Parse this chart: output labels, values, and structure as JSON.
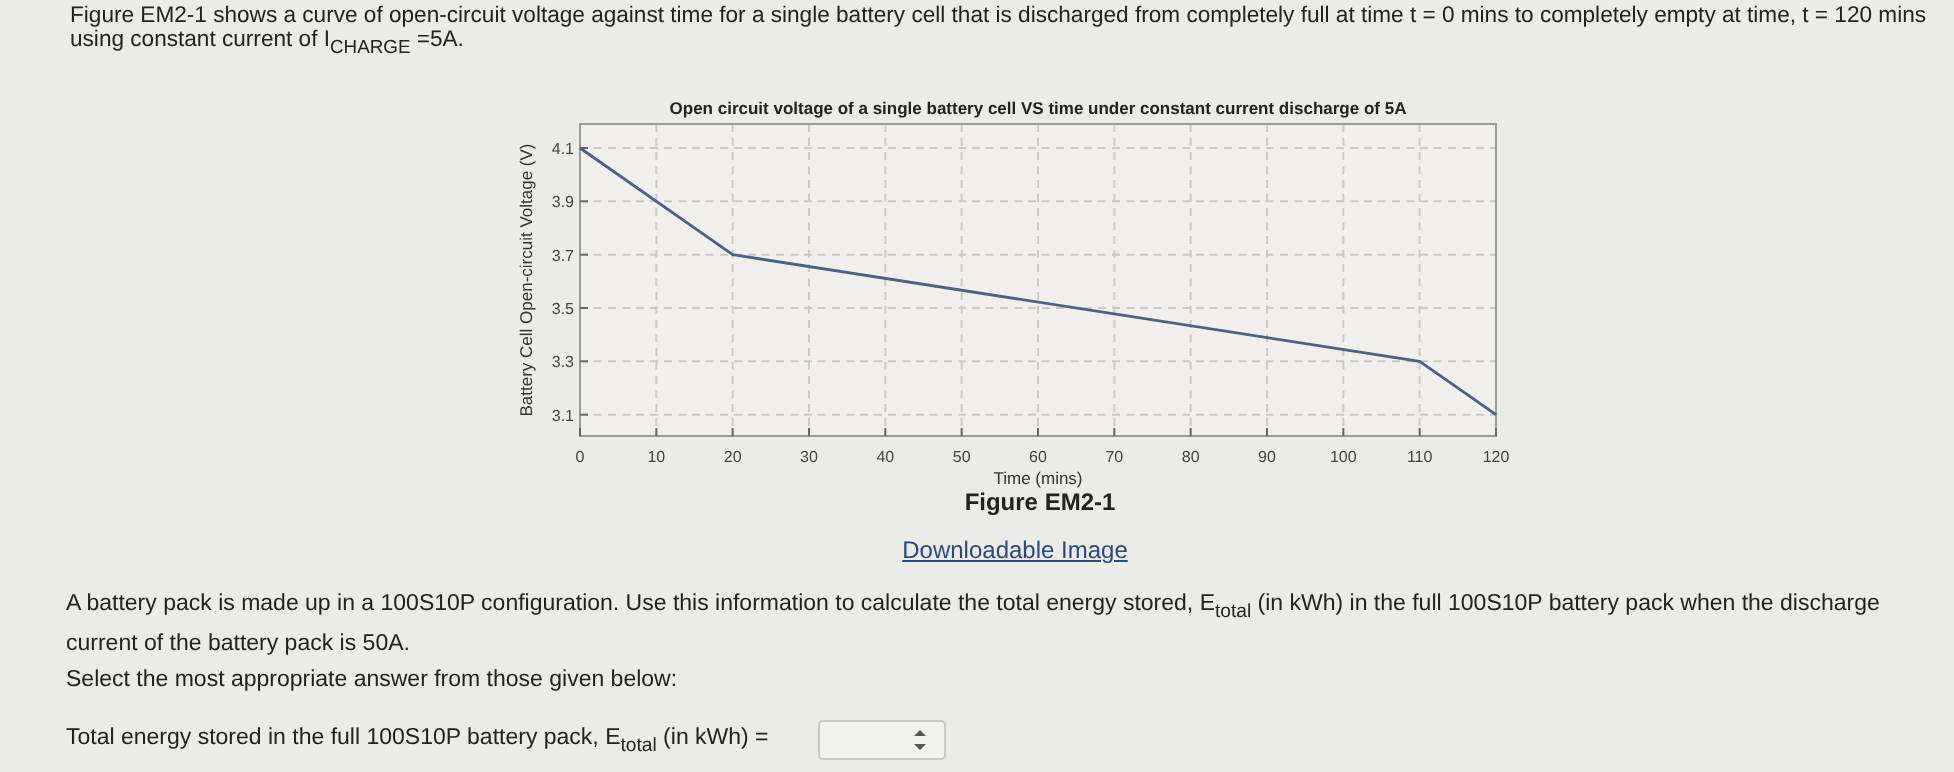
{
  "chart_data": {
    "type": "line",
    "title": "Open circuit voltage of a single battery cell VS time under constant current discharge of 5A",
    "xlabel": "Time (mins)",
    "ylabel": "Battery Cell Open-circuit Voltage (V)",
    "x": [
      0,
      20,
      110,
      120
    ],
    "series": [
      {
        "color": "#4f5f80",
        "values": [
          4.1,
          3.7,
          3.3,
          3.1
        ]
      }
    ],
    "xlim": [
      0,
      120
    ],
    "xticks": [
      0,
      10,
      20,
      30,
      40,
      50,
      60,
      70,
      80,
      90,
      100,
      110,
      120
    ],
    "ylim": [
      3.02,
      4.19
    ],
    "yticks": [
      3.1,
      3.3,
      3.5,
      3.7,
      3.9,
      4.1
    ],
    "grid": true,
    "line_style": "solid",
    "marker": "none",
    "annotations": [
      "Figure EM2-1 shows a curve of open-circuit voltage against time for a single battery cell that is discharged from completely full at time t = 0 mins to completely empty at time, t = 120 mins using constant current of I$_{CHARGE}$ =5A.",
      "Figure EM2-1",
      "Downloadable Image",
      "A battery pack is made up in a 100S10P configuration.  Use this information to calculate the total energy stored, E$_{total}$ (in kWh) in the full 100S10P battery pack when the discharge current of the battery pack is 50A.",
      "Select the most appropriate answer from those given below:",
      "Total energy stored in the full 100S10P battery pack, E$_{total}$ (in kWh) ="
    ]
  }
}
